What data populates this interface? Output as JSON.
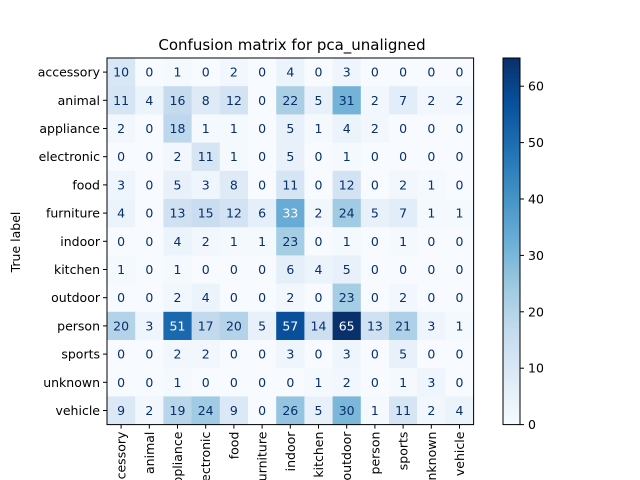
{
  "chart_data": {
    "type": "heatmap",
    "title": "Confusion matrix for pca_unaligned",
    "ylabel": "True label",
    "xlabel": "",
    "labels": [
      "accessory",
      "animal",
      "appliance",
      "electronic",
      "food",
      "furniture",
      "indoor",
      "kitchen",
      "outdoor",
      "person",
      "sports",
      "unknown",
      "vehicle"
    ],
    "x_tick_labels": [
      "accessory",
      "animal",
      "appliance",
      "electronic",
      "food",
      "furniture",
      "indoor",
      "kitchen",
      "outdoor",
      "person",
      "sports",
      "unknown",
      "vehicle"
    ],
    "matrix": [
      [
        10,
        0,
        1,
        0,
        2,
        0,
        4,
        0,
        3,
        0,
        0,
        0,
        0
      ],
      [
        11,
        4,
        16,
        8,
        12,
        0,
        22,
        5,
        31,
        2,
        7,
        2,
        2
      ],
      [
        2,
        0,
        18,
        1,
        1,
        0,
        5,
        1,
        4,
        2,
        0,
        0,
        0
      ],
      [
        0,
        0,
        2,
        11,
        1,
        0,
        5,
        0,
        1,
        0,
        0,
        0,
        0
      ],
      [
        3,
        0,
        5,
        3,
        8,
        0,
        11,
        0,
        12,
        0,
        2,
        1,
        0
      ],
      [
        4,
        0,
        13,
        15,
        12,
        6,
        33,
        2,
        24,
        5,
        7,
        1,
        1
      ],
      [
        0,
        0,
        4,
        2,
        1,
        1,
        23,
        0,
        1,
        0,
        1,
        0,
        0
      ],
      [
        1,
        0,
        1,
        0,
        0,
        0,
        6,
        4,
        5,
        0,
        0,
        0,
        0
      ],
      [
        0,
        0,
        2,
        4,
        0,
        0,
        2,
        0,
        23,
        0,
        2,
        0,
        0
      ],
      [
        20,
        3,
        51,
        17,
        20,
        5,
        57,
        14,
        65,
        13,
        21,
        3,
        1
      ],
      [
        0,
        0,
        2,
        2,
        0,
        0,
        3,
        0,
        3,
        0,
        5,
        0,
        0
      ],
      [
        0,
        0,
        1,
        0,
        0,
        0,
        0,
        1,
        2,
        0,
        1,
        3,
        0
      ],
      [
        9,
        2,
        19,
        24,
        9,
        0,
        26,
        5,
        30,
        1,
        11,
        2,
        4
      ]
    ],
    "colormap": "Blues",
    "vmin": 0,
    "vmax": 65,
    "colorbar_ticks": [
      "0",
      "10",
      "20",
      "30",
      "40",
      "50",
      "60"
    ],
    "grid": false
  }
}
